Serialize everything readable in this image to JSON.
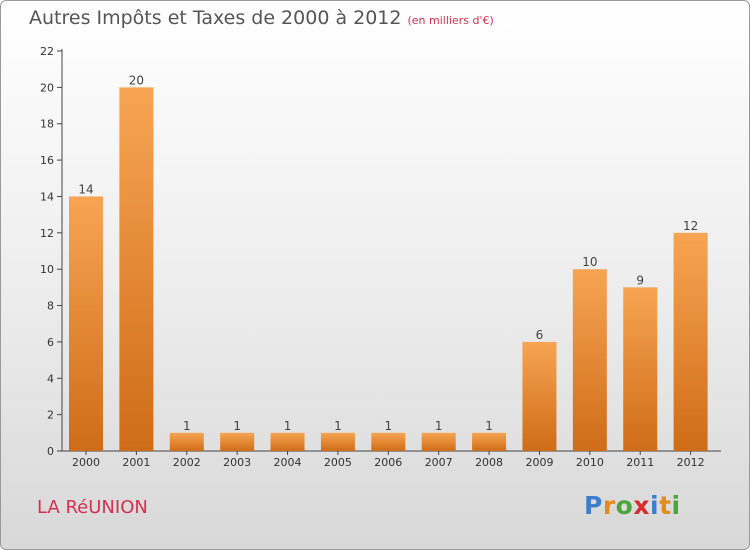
{
  "chart_data": {
    "type": "bar",
    "title": "Autres Impôts et Taxes de 2000 à 2012",
    "subtitle": "(en milliers d'€)",
    "categories": [
      "2000",
      "2001",
      "2002",
      "2003",
      "2004",
      "2005",
      "2006",
      "2007",
      "2008",
      "2009",
      "2010",
      "2011",
      "2012"
    ],
    "values": [
      14,
      20,
      1,
      1,
      1,
      1,
      1,
      1,
      1,
      6,
      10,
      9,
      12
    ],
    "ylim": [
      0,
      22
    ],
    "yticks": [
      0,
      2,
      4,
      6,
      8,
      10,
      12,
      14,
      16,
      18,
      20,
      22
    ],
    "grid": false,
    "colors": {
      "bar_top": "#f7a553",
      "bar_bottom": "#cf6c17",
      "value_text": "#444444"
    }
  },
  "footer": {
    "place": "LA RéUNION",
    "logo_letters": [
      "P",
      "r",
      "o",
      "x",
      "i",
      "t",
      "i"
    ],
    "logo_colors": [
      "#3c7fd0",
      "#e38b1f",
      "#4aa53b",
      "#d92b2b",
      "#3c7fd0",
      "#e38b1f",
      "#4aa53b"
    ]
  }
}
